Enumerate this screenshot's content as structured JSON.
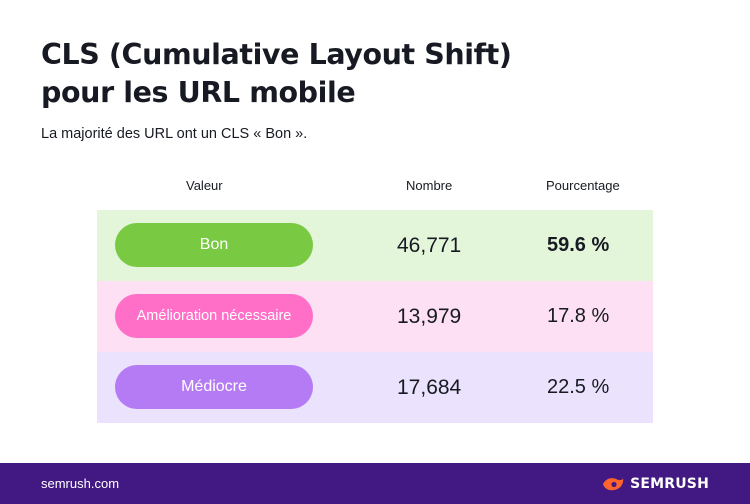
{
  "header": {
    "title_line1": "CLS (Cumulative Layout Shift)",
    "title_line2": "pour les URL mobile",
    "subtitle": "La majorité des URL ont un CLS « Bon »."
  },
  "table": {
    "columns": [
      "Valeur",
      "Nombre",
      "Pourcentage"
    ],
    "rows": [
      {
        "label": "Bon",
        "count": "46,771",
        "percent": "59.6 %",
        "pill_color": "#7ac943",
        "row_color": "#e3f6da"
      },
      {
        "label": "Amélioration nécessaire",
        "count": "13,979",
        "percent": "17.8 %",
        "pill_color": "#ff6ec7",
        "row_color": "#fde0f3"
      },
      {
        "label": "Médiocre",
        "count": "17,684",
        "percent": "22.5 %",
        "pill_color": "#b57bf4",
        "row_color": "#ebe3fd"
      }
    ]
  },
  "footer": {
    "url": "semrush.com",
    "brand": "SEMRUSH",
    "brand_icon": "semrush-fire-icon",
    "background": "#421983",
    "accent": "#ff642d"
  }
}
